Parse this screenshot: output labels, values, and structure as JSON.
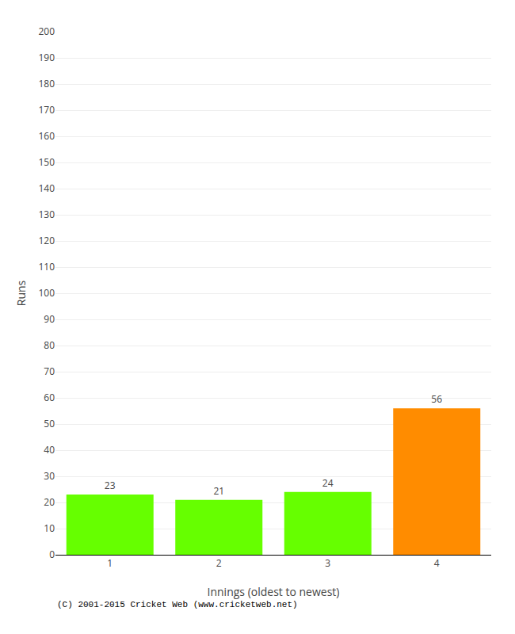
{
  "chart_data": {
    "type": "bar",
    "categories": [
      "1",
      "2",
      "3",
      "4"
    ],
    "values": [
      23,
      21,
      24,
      56
    ],
    "colors": [
      "#66ff00",
      "#66ff00",
      "#66ff00",
      "#ff8c00"
    ],
    "xlabel": "Innings (oldest to newest)",
    "ylabel": "Runs",
    "ylim": [
      0,
      200
    ],
    "yticks": [
      0,
      10,
      20,
      30,
      40,
      50,
      60,
      70,
      80,
      90,
      100,
      110,
      120,
      130,
      140,
      150,
      160,
      170,
      180,
      190,
      200
    ],
    "grid": true,
    "data_labels": true,
    "footer": "(C) 2001-2015 Cricket Web (www.cricketweb.net)"
  }
}
